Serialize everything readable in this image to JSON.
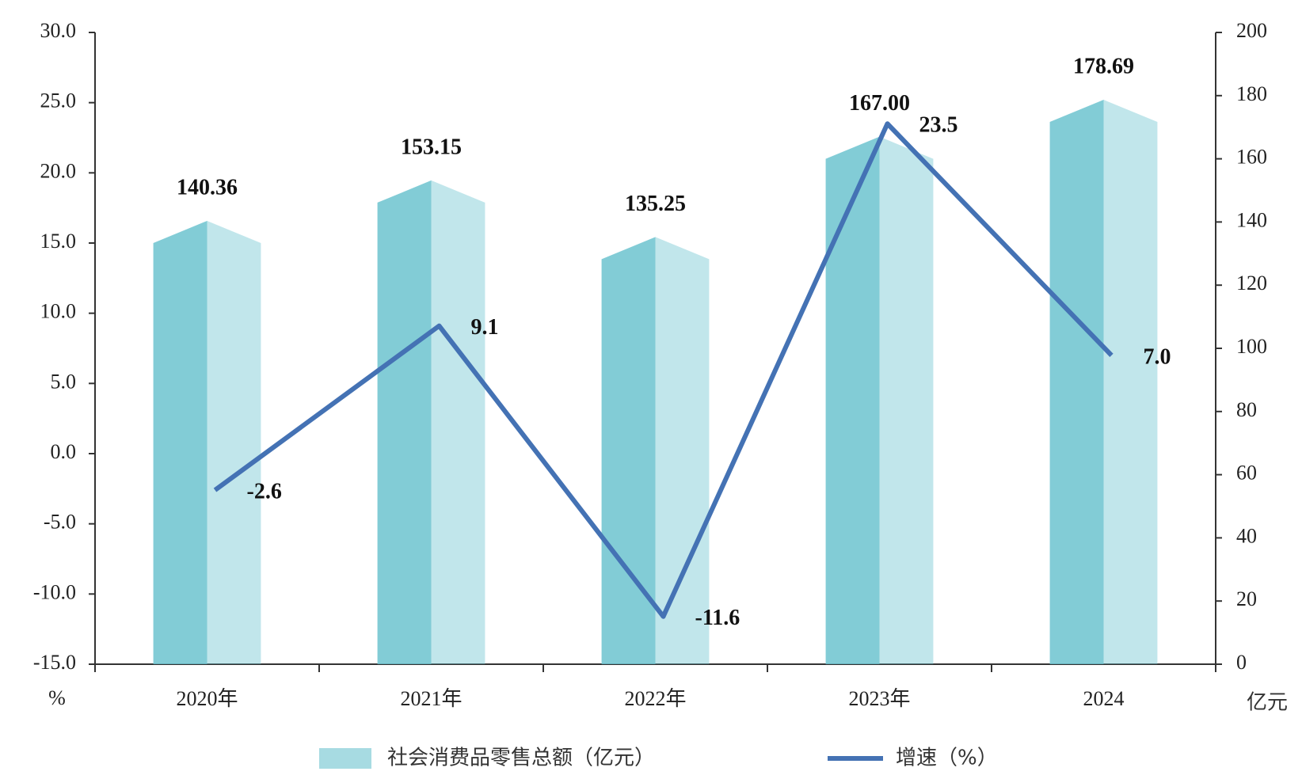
{
  "chart_data": {
    "type": "bar-line",
    "categories": [
      "2020年",
      "2021年",
      "2022年",
      "2023年",
      "2024"
    ],
    "y_unit": "%",
    "y2_unit": "亿元",
    "ylim": [
      -15,
      30
    ],
    "yticks": [
      {
        "value": -15,
        "label": "-15.0"
      },
      {
        "value": -10,
        "label": "-10.0"
      },
      {
        "value": -5,
        "label": "-5.0"
      },
      {
        "value": 0,
        "label": "0.0"
      },
      {
        "value": 5,
        "label": "5.0"
      },
      {
        "value": 10,
        "label": "10.0"
      },
      {
        "value": 15,
        "label": "15.0"
      },
      {
        "value": 20,
        "label": "20.0"
      },
      {
        "value": 25,
        "label": "25.0"
      },
      {
        "value": 30,
        "label": "30.0"
      }
    ],
    "y2lim": [
      0,
      200
    ],
    "y2ticks": [
      0,
      20,
      40,
      60,
      80,
      100,
      120,
      140,
      160,
      180,
      200
    ],
    "series": [
      {
        "name": "社会消费品零售总额（亿元）",
        "type": "bar",
        "axis": "y2",
        "color": "#6cc3cf",
        "values": [
          140.36,
          153.15,
          135.25,
          167.0,
          178.69
        ],
        "value_labels": [
          "140.36",
          "153.15",
          "135.25",
          "167.00",
          "178.69"
        ]
      },
      {
        "name": "增速（%）",
        "type": "line",
        "axis": "y",
        "color": "#4472b4",
        "values": [
          -2.6,
          9.1,
          -11.6,
          23.5,
          7.0
        ],
        "value_labels": [
          "-2.6",
          "9.1",
          "-11.6",
          "23.5",
          "7.0"
        ]
      }
    ]
  }
}
